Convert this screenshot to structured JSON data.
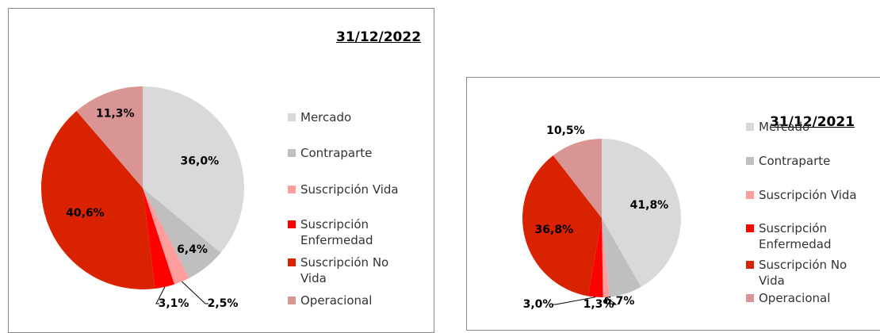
{
  "chart_data": [
    {
      "type": "pie",
      "title": "31/12/2022",
      "categories": [
        "Mercado",
        "Contraparte",
        "Suscripción Vida",
        "Suscripción Enfermedad",
        "Suscripción No Vida",
        "Operacional"
      ],
      "values": [
        36.0,
        6.4,
        2.5,
        3.1,
        40.6,
        11.3
      ],
      "value_labels": [
        "36,0%",
        "6,4%",
        "2,5%",
        "3,1%",
        "40,6%",
        "11,3%"
      ],
      "colors": [
        "#d9d9d9",
        "#bfbfbf",
        "#ff9c9c",
        "#ff0000",
        "#d92200",
        "#d99593"
      ]
    },
    {
      "type": "pie",
      "title": "31/12/2021",
      "categories": [
        "Mercado",
        "Contraparte",
        "Suscripción Vida",
        "Suscripción Enfermedad",
        "Suscripción No Vida",
        "Operacional"
      ],
      "values": [
        41.8,
        6.7,
        1.3,
        3.0,
        36.8,
        10.5
      ],
      "value_labels": [
        "41,8%",
        "6,7%",
        "1,3%",
        "3,0%",
        "36,8%",
        "10,5%"
      ],
      "colors": [
        "#d9d9d9",
        "#bfbfbf",
        "#ff9c9c",
        "#ff0000",
        "#d92200",
        "#d99593"
      ]
    }
  ]
}
